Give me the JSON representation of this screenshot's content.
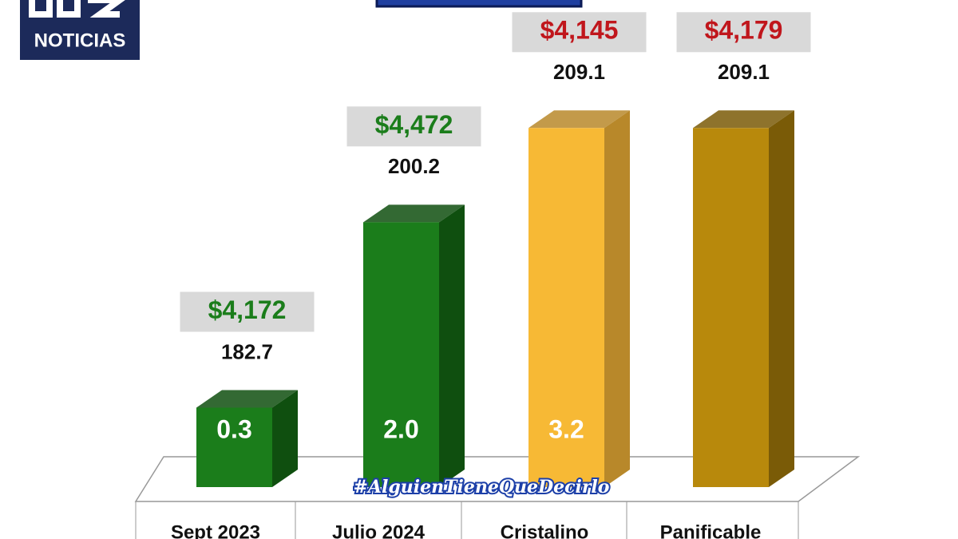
{
  "chart_data": {
    "type": "bar3d",
    "logo": "NOTICIAS",
    "hashtag": "#AlguienTieneQueDecirlo",
    "categories": [
      "Sept 2023",
      "Julio 2024",
      "Cristalino",
      "Panificable"
    ],
    "values": [
      182.7,
      200.2,
      209.1,
      209.1
    ],
    "colors": [
      "#1b7d1b",
      "#1b7d1b",
      "#f7b935",
      "#b8890c"
    ],
    "side_colors": [
      "#0f4f0f",
      "#0f4f0f",
      "#b8882a",
      "#7a5b07"
    ],
    "inner_values": [
      0.3,
      2,
      3.2,
      null
    ],
    "inner_value_labels": [
      "0.3",
      "2.0",
      "3.2",
      null
    ],
    "prices": [
      4172,
      4472,
      4145,
      4179
    ],
    "price_labels": [
      "$4,172",
      "$4,472",
      "$4,145",
      "$4,179"
    ],
    "price_colors": [
      "#1b7d1b",
      "#1b7d1b",
      "#c0161c",
      "#c0161c"
    ],
    "ylim": [
      175.2,
      215
    ]
  }
}
